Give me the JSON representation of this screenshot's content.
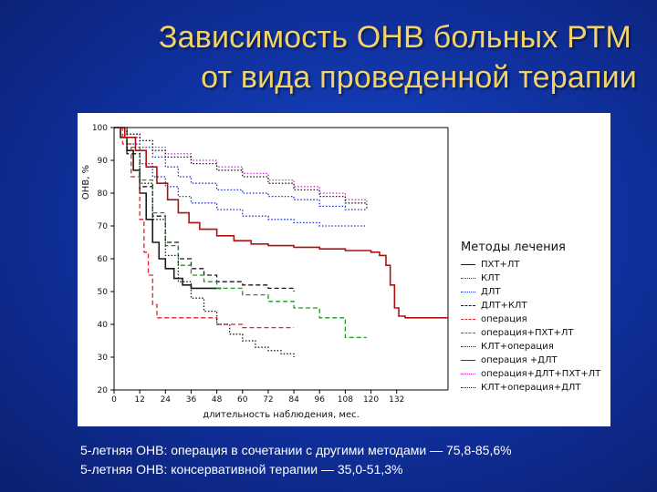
{
  "title": {
    "line1": "Зависимость ОНВ больных РТМ",
    "line2": "от вида проведенной терапии"
  },
  "footer": {
    "line1": "5-летняя ОНВ: операция в сочетании с другими методами — 75,8-85,6%",
    "line2": "5-летняя ОНВ: консервативной терапии — 35,0-51,3%"
  },
  "chart_data": {
    "type": "line",
    "ylabel": "ОНВ, %",
    "xlabel": "длительность наблюдения, мес.",
    "xticks": [
      "0",
      "12",
      "24",
      "36",
      "48",
      "60",
      "72",
      "84",
      "96",
      "108",
      "120",
      "132"
    ],
    "yticks": [
      "20",
      "30",
      "40",
      "50",
      "60",
      "70",
      "80",
      "90",
      "100"
    ],
    "xlim": [
      0,
      156
    ],
    "ylim": [
      20,
      100
    ],
    "legend_title": "Методы лечения",
    "legend_position": "right",
    "series": [
      {
        "name": "ПХТ+ЛТ",
        "color": "#1a1a1a",
        "style": "solid",
        "points": [
          [
            0,
            100
          ],
          [
            3,
            97
          ],
          [
            6,
            93
          ],
          [
            9,
            87
          ],
          [
            12,
            80
          ],
          [
            15,
            72
          ],
          [
            18,
            65
          ],
          [
            21,
            60
          ],
          [
            24,
            57
          ],
          [
            28,
            54
          ],
          [
            32,
            52
          ],
          [
            36,
            51
          ],
          [
            40,
            51
          ],
          [
            50,
            51
          ]
        ]
      },
      {
        "name": "КЛТ",
        "color": "#1b2fd6",
        "style": "dotted",
        "points": [
          [
            0,
            100
          ],
          [
            6,
            97
          ],
          [
            12,
            94
          ],
          [
            18,
            91
          ],
          [
            24,
            88
          ],
          [
            30,
            85
          ],
          [
            36,
            83
          ],
          [
            48,
            81
          ],
          [
            60,
            80
          ],
          [
            72,
            79
          ],
          [
            84,
            78
          ],
          [
            96,
            76
          ],
          [
            108,
            75
          ],
          [
            118,
            75
          ]
        ]
      },
      {
        "name": "ДЛТ",
        "color": "#1b2fd6",
        "style": "dotted",
        "points": [
          [
            0,
            100
          ],
          [
            6,
            95
          ],
          [
            12,
            89
          ],
          [
            18,
            85
          ],
          [
            24,
            82
          ],
          [
            30,
            79
          ],
          [
            36,
            77
          ],
          [
            48,
            75
          ],
          [
            60,
            73
          ],
          [
            72,
            72
          ],
          [
            84,
            71
          ],
          [
            96,
            70
          ],
          [
            108,
            70
          ],
          [
            118,
            70
          ]
        ]
      },
      {
        "name": "ДЛТ+КЛТ",
        "color": "#1a1a1a",
        "style": "dashed",
        "points": [
          [
            0,
            100
          ],
          [
            6,
            92
          ],
          [
            12,
            82
          ],
          [
            18,
            73
          ],
          [
            24,
            65
          ],
          [
            30,
            60
          ],
          [
            36,
            57
          ],
          [
            42,
            55
          ],
          [
            48,
            53
          ],
          [
            60,
            52
          ],
          [
            72,
            51
          ],
          [
            84,
            50
          ]
        ]
      },
      {
        "name": "операция",
        "color": "#e02222",
        "style": "dashed",
        "points": [
          [
            0,
            100
          ],
          [
            4,
            95
          ],
          [
            8,
            85
          ],
          [
            12,
            72
          ],
          [
            14,
            62
          ],
          [
            16,
            55
          ],
          [
            18,
            46
          ],
          [
            20,
            42
          ],
          [
            24,
            42
          ],
          [
            36,
            42
          ],
          [
            48,
            40
          ],
          [
            60,
            39
          ],
          [
            72,
            39
          ],
          [
            84,
            39
          ]
        ]
      },
      {
        "name": "операция+ПХТ+ЛТ",
        "color": "#1a9a1a",
        "style": "dashed",
        "points": [
          [
            0,
            100
          ],
          [
            6,
            94
          ],
          [
            12,
            84
          ],
          [
            18,
            74
          ],
          [
            24,
            64
          ],
          [
            30,
            58
          ],
          [
            36,
            55
          ],
          [
            42,
            53
          ],
          [
            48,
            51
          ],
          [
            60,
            49
          ],
          [
            72,
            47
          ],
          [
            84,
            45
          ],
          [
            96,
            42
          ],
          [
            108,
            36
          ],
          [
            118,
            36
          ]
        ]
      },
      {
        "name": "КЛТ+операция",
        "color": "#1a1a1a",
        "style": "dotted",
        "points": [
          [
            0,
            100
          ],
          [
            6,
            93
          ],
          [
            12,
            83
          ],
          [
            18,
            72
          ],
          [
            24,
            61
          ],
          [
            30,
            53
          ],
          [
            36,
            48
          ],
          [
            42,
            44
          ],
          [
            48,
            40
          ],
          [
            54,
            37
          ],
          [
            60,
            35
          ],
          [
            66,
            33
          ],
          [
            72,
            32
          ],
          [
            78,
            31
          ],
          [
            84,
            30
          ]
        ]
      },
      {
        "name": "операция +ДЛТ",
        "color": "#b01010",
        "style": "solid",
        "points": [
          [
            0,
            100
          ],
          [
            5,
            97
          ],
          [
            10,
            93
          ],
          [
            15,
            88
          ],
          [
            20,
            83
          ],
          [
            25,
            78
          ],
          [
            30,
            74
          ],
          [
            35,
            71
          ],
          [
            40,
            69
          ],
          [
            48,
            67
          ],
          [
            56,
            65.5
          ],
          [
            64,
            64.5
          ],
          [
            72,
            64
          ],
          [
            84,
            63.5
          ],
          [
            96,
            63
          ],
          [
            108,
            62.5
          ],
          [
            120,
            62
          ],
          [
            124,
            61
          ],
          [
            127,
            58
          ],
          [
            129,
            52
          ],
          [
            131,
            45
          ],
          [
            133,
            42.5
          ],
          [
            136,
            42
          ],
          [
            156,
            42
          ]
        ]
      },
      {
        "name": "операция+ДЛТ+ПХТ+ЛТ",
        "color": "#d42bd4",
        "style": "dotted",
        "points": [
          [
            0,
            100
          ],
          [
            6,
            98
          ],
          [
            12,
            96
          ],
          [
            18,
            94
          ],
          [
            24,
            92
          ],
          [
            36,
            90
          ],
          [
            48,
            88
          ],
          [
            60,
            86
          ],
          [
            72,
            84
          ],
          [
            84,
            82
          ],
          [
            96,
            80
          ],
          [
            108,
            78
          ],
          [
            118,
            77
          ]
        ]
      },
      {
        "name": "КЛТ+операция+ДЛТ",
        "color": "#1a1a1a",
        "style": "dotted",
        "points": [
          [
            0,
            100
          ],
          [
            6,
            98
          ],
          [
            12,
            96
          ],
          [
            18,
            93
          ],
          [
            24,
            91
          ],
          [
            36,
            89
          ],
          [
            48,
            87
          ],
          [
            60,
            85
          ],
          [
            72,
            83
          ],
          [
            84,
            81
          ],
          [
            96,
            79
          ],
          [
            108,
            77
          ],
          [
            118,
            75
          ]
        ]
      }
    ]
  }
}
